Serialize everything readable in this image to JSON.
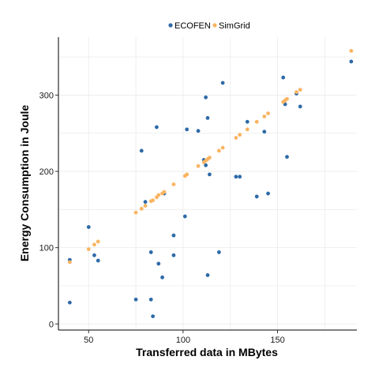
{
  "chart_data": {
    "type": "scatter",
    "xlabel": "Transferred data in MBytes",
    "ylabel": "Energy Consumption in Joule",
    "xlim": [
      34,
      192
    ],
    "ylim": [
      -8,
      376
    ],
    "x_ticks": [
      50,
      100,
      150
    ],
    "y_ticks": [
      0,
      100,
      200,
      300
    ],
    "x_tick_labels": [
      "50",
      "100",
      "150"
    ],
    "y_tick_labels": [
      "0",
      "100",
      "200",
      "300"
    ],
    "grid": true,
    "legend_position": "top",
    "series": [
      {
        "name": "ECOFEN",
        "color": "#2e6aa8",
        "points": [
          [
            40,
            84
          ],
          [
            40,
            28
          ],
          [
            50,
            127
          ],
          [
            53,
            90
          ],
          [
            55,
            83
          ],
          [
            75,
            32
          ],
          [
            78,
            227
          ],
          [
            80,
            160
          ],
          [
            83,
            94
          ],
          [
            83,
            32
          ],
          [
            84,
            10
          ],
          [
            86,
            258
          ],
          [
            87,
            79
          ],
          [
            89,
            61
          ],
          [
            90,
            171
          ],
          [
            95,
            116
          ],
          [
            95,
            90
          ],
          [
            101,
            141
          ],
          [
            102,
            255
          ],
          [
            108,
            253
          ],
          [
            111,
            215
          ],
          [
            112,
            297
          ],
          [
            112,
            208
          ],
          [
            113,
            270
          ],
          [
            114,
            196
          ],
          [
            113,
            64
          ],
          [
            119,
            94
          ],
          [
            121,
            316
          ],
          [
            128,
            193
          ],
          [
            130,
            193
          ],
          [
            134,
            265
          ],
          [
            139,
            167
          ],
          [
            143,
            252
          ],
          [
            145,
            171
          ],
          [
            153,
            323
          ],
          [
            154,
            288
          ],
          [
            155,
            219
          ],
          [
            160,
            302
          ],
          [
            162,
            285
          ],
          [
            189,
            344
          ]
        ]
      },
      {
        "name": "SimGrid",
        "color": "#fbb461",
        "points": [
          [
            40,
            81
          ],
          [
            50,
            98
          ],
          [
            53,
            104
          ],
          [
            55,
            108
          ],
          [
            75,
            146
          ],
          [
            78,
            151
          ],
          [
            80,
            155
          ],
          [
            83,
            161
          ],
          [
            84,
            162
          ],
          [
            86,
            166
          ],
          [
            87,
            169
          ],
          [
            89,
            171
          ],
          [
            90,
            173
          ],
          [
            95,
            183
          ],
          [
            101,
            194
          ],
          [
            102,
            196
          ],
          [
            108,
            207
          ],
          [
            111,
            212
          ],
          [
            112,
            214
          ],
          [
            113,
            216
          ],
          [
            114,
            218
          ],
          [
            119,
            227
          ],
          [
            121,
            231
          ],
          [
            128,
            244
          ],
          [
            130,
            248
          ],
          [
            134,
            255
          ],
          [
            139,
            265
          ],
          [
            143,
            272
          ],
          [
            145,
            276
          ],
          [
            153,
            291
          ],
          [
            154,
            293
          ],
          [
            155,
            295
          ],
          [
            160,
            304
          ],
          [
            162,
            307
          ],
          [
            189,
            358
          ]
        ]
      }
    ]
  }
}
